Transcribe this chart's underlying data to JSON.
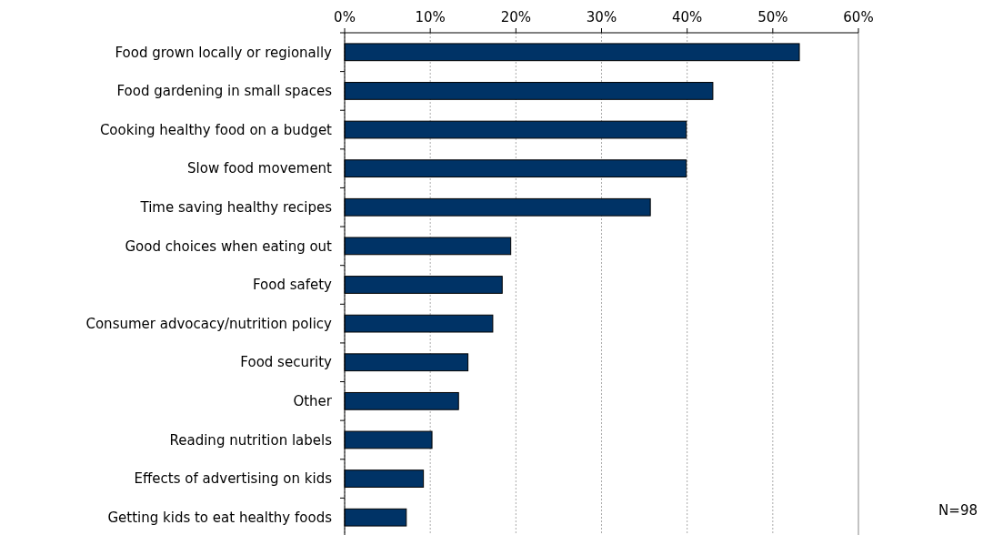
{
  "chart_data": {
    "type": "bar",
    "orientation": "horizontal",
    "categories": [
      "Food grown locally or regionally",
      "Food gardening in small spaces",
      "Cooking healthy food on a budget",
      "Slow food movement",
      "Time saving healthy recipes",
      "Good choices when eating out",
      "Food safety",
      "Consumer advocacy/nutrition policy",
      "Food security",
      "Other",
      "Reading nutrition labels",
      "Effects of advertising on kids",
      "Getting kids to eat healthy foods"
    ],
    "values": [
      53.1,
      43,
      39.9,
      39.9,
      35.7,
      19.4,
      18.4,
      17.3,
      14.4,
      13.3,
      10.2,
      9.2,
      7.2
    ],
    "color": "#003366",
    "xlim": [
      0,
      60
    ],
    "xticks": [
      {
        "value": 0,
        "label": "0%"
      },
      {
        "value": 10,
        "label": "10%"
      },
      {
        "value": 20,
        "label": "20%"
      },
      {
        "value": 30,
        "label": "30%"
      },
      {
        "value": 40,
        "label": "40%"
      },
      {
        "value": 50,
        "label": "50%"
      },
      {
        "value": 60,
        "label": "60%"
      }
    ],
    "grid": "x",
    "annotations": [
      "N=98"
    ]
  }
}
